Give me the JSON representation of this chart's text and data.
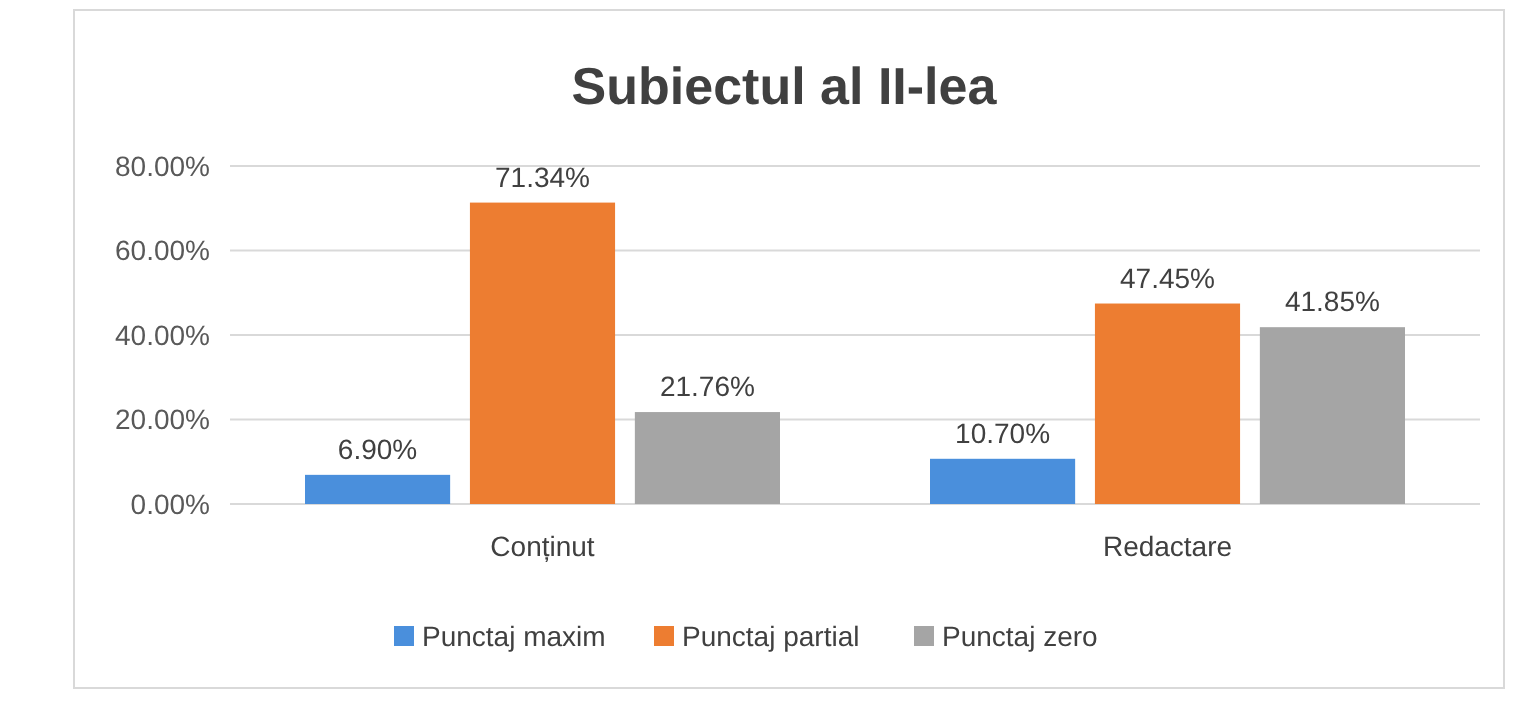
{
  "chart_data": {
    "type": "bar",
    "title": "Subiectul al II-lea",
    "categories": [
      "Conținut",
      "Redactare"
    ],
    "series": [
      {
        "name": "Punctaj maxim",
        "color": "#4a8fdc",
        "values": [
          6.9,
          10.7
        ],
        "value_labels": [
          "6.90%",
          "10.70%"
        ]
      },
      {
        "name": "Punctaj partial",
        "color": "#ed7d31",
        "values": [
          71.34,
          47.45
        ],
        "value_labels": [
          "71.34%",
          "47.45%"
        ]
      },
      {
        "name": "Punctaj zero",
        "color": "#a5a5a5",
        "values": [
          21.76,
          41.85
        ],
        "value_labels": [
          "21.76%",
          "41.85%"
        ]
      }
    ],
    "ylim": [
      0,
      80
    ],
    "yticks": [
      {
        "value": 0,
        "label": "0.00%"
      },
      {
        "value": 20,
        "label": "20.00%"
      },
      {
        "value": 40,
        "label": "40.00%"
      },
      {
        "value": 60,
        "label": "60.00%"
      },
      {
        "value": 80,
        "label": "80.00%"
      }
    ],
    "grid": "y",
    "legend": "bottom"
  }
}
